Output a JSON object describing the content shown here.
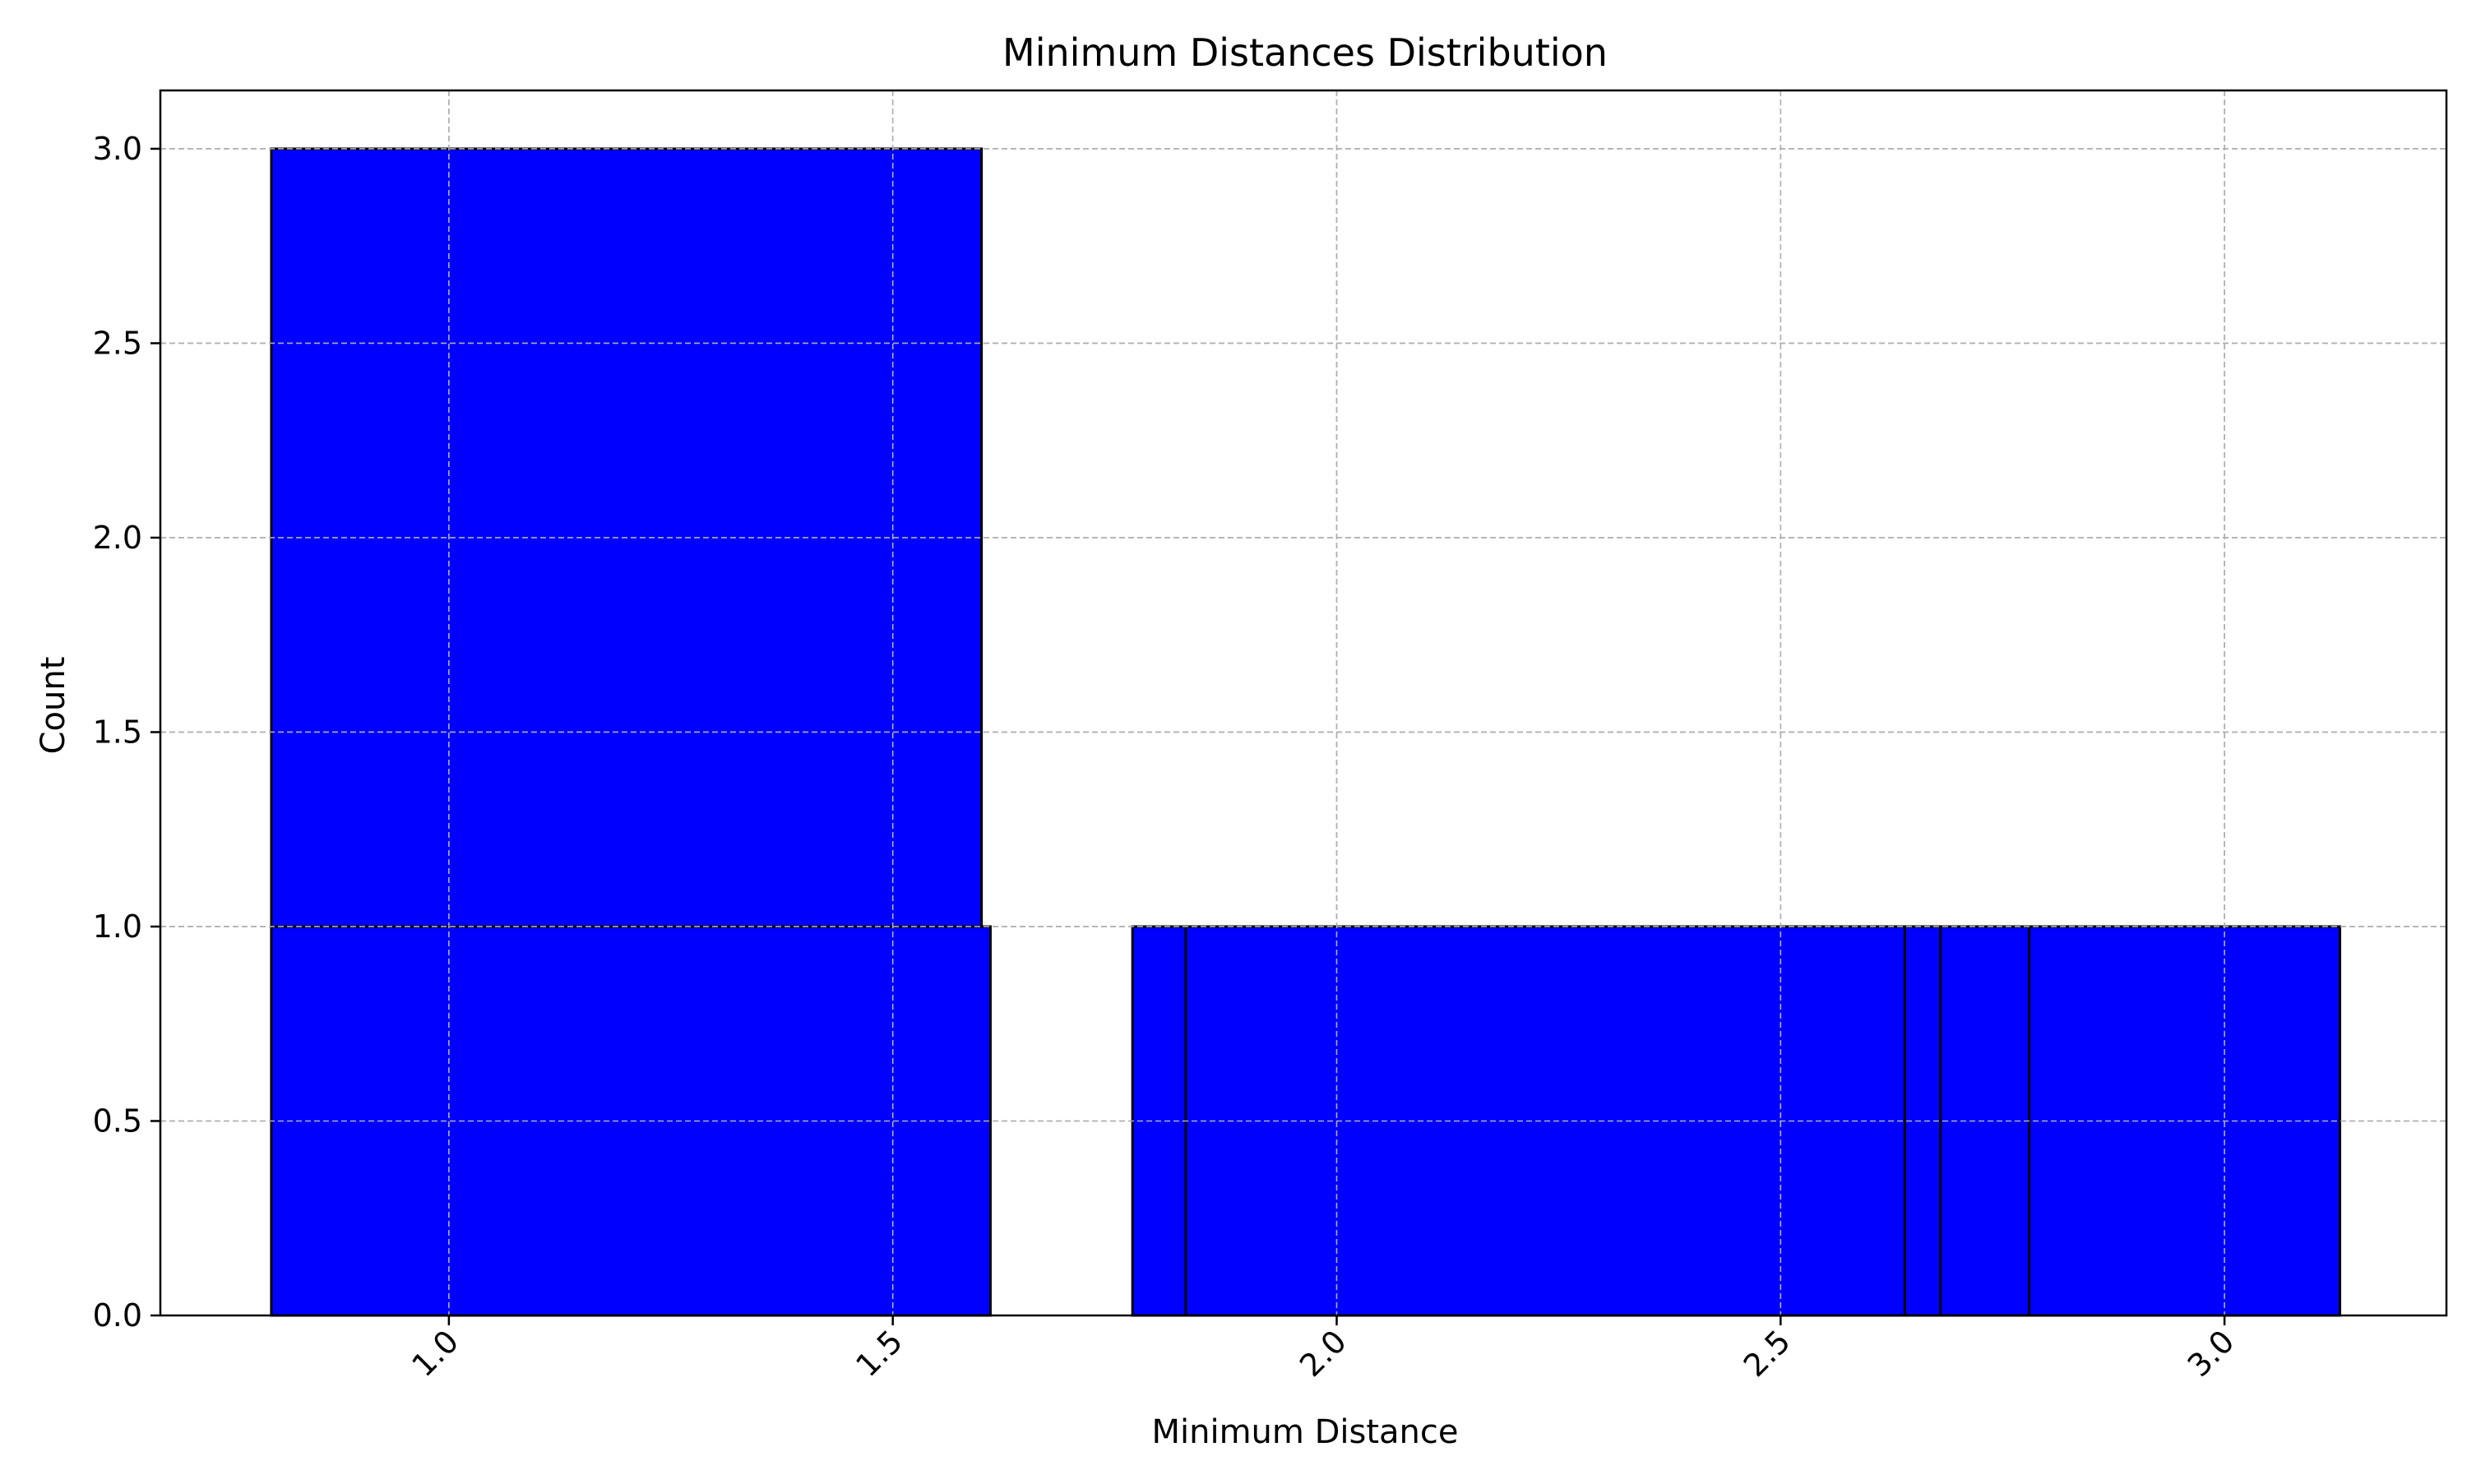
{
  "chart_data": {
    "type": "bar",
    "title": "Minimum Distances Distribution",
    "xlabel": "Minimum Distance",
    "ylabel": "Count",
    "xlim": [
      0.675,
      3.25
    ],
    "ylim": [
      0,
      3.15
    ],
    "grid": true,
    "x_ticks": [
      1.0,
      1.5,
      2.0,
      2.5,
      3.0
    ],
    "x_tick_labels": [
      "1.0",
      "1.5",
      "2.0",
      "2.5",
      "3.0"
    ],
    "y_ticks": [
      0.0,
      0.5,
      1.0,
      1.5,
      2.0,
      2.5,
      3.0
    ],
    "y_tick_labels": [
      "0.0",
      "0.5",
      "1.0",
      "1.5",
      "2.0",
      "2.5",
      "3.0"
    ],
    "bars": [
      {
        "x0": 0.8,
        "x1": 1.6,
        "value": 3
      },
      {
        "x0": 0.8,
        "x1": 1.61,
        "value": 1
      },
      {
        "x0": 1.77,
        "x1": 2.64,
        "value": 1
      },
      {
        "x0": 1.83,
        "x1": 2.68,
        "value": 1
      },
      {
        "x0": 2.64,
        "x1": 2.78,
        "value": 1
      },
      {
        "x0": 2.68,
        "x1": 3.13,
        "value": 1
      },
      {
        "x0": 2.78,
        "x1": 3.13,
        "value": 1
      }
    ],
    "bar_color": "#0000ff",
    "edge_color": "#000000",
    "grid_color": "#b0b0b0"
  }
}
